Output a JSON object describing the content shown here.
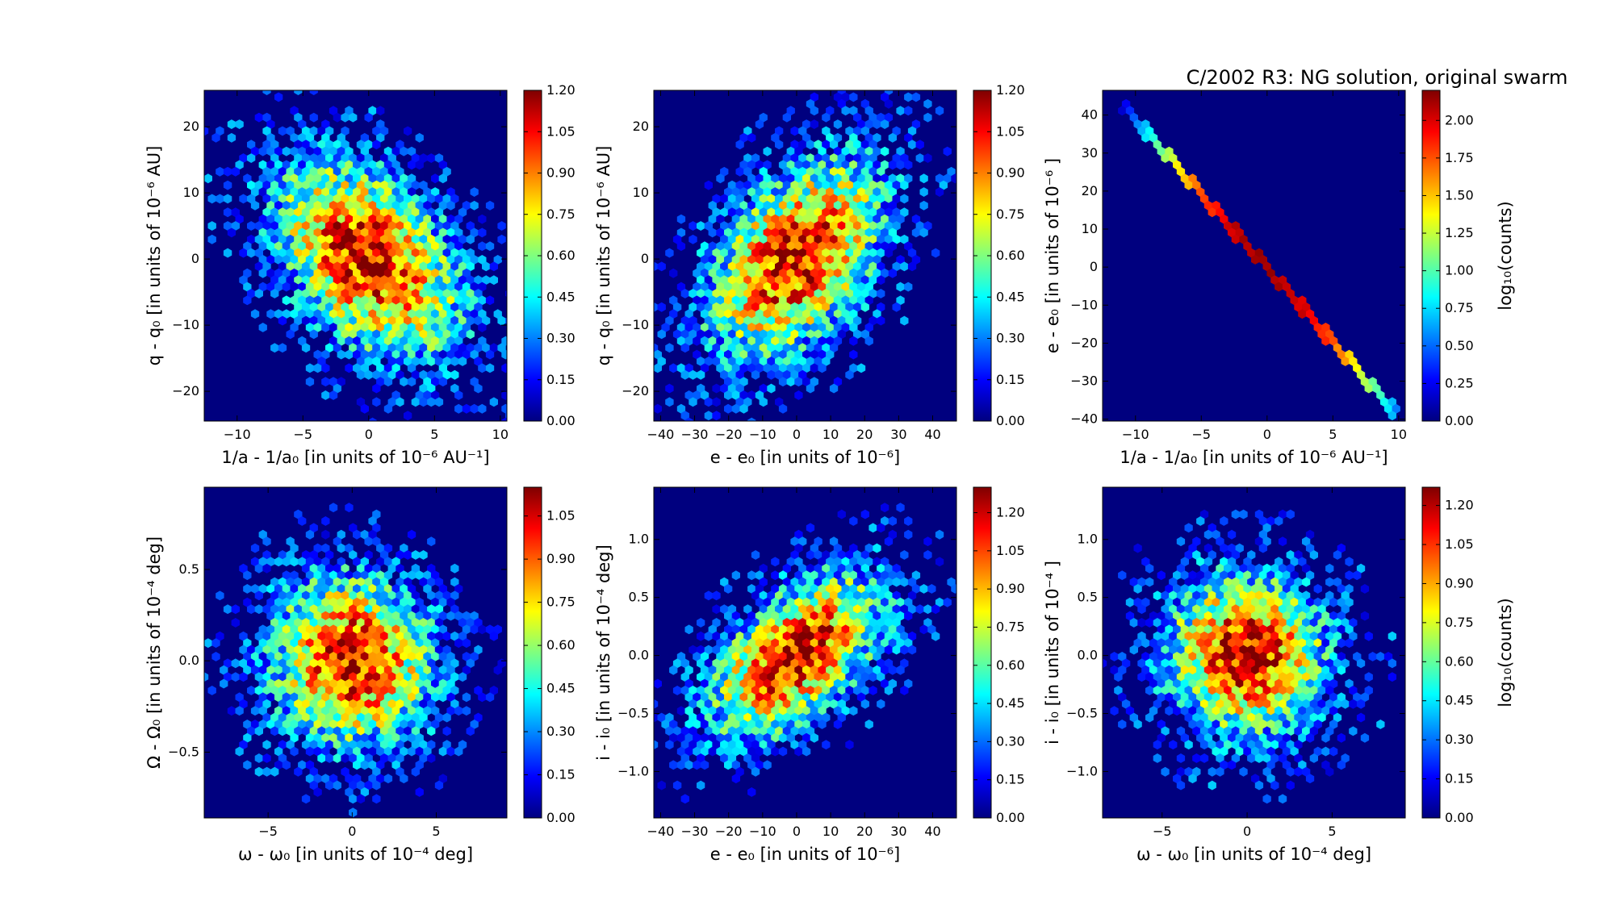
{
  "figure": {
    "title": "C/2002 R3: NG solution, original swarm"
  },
  "colormap": {
    "name": "jet",
    "stops": [
      "#00007f",
      "#0000ff",
      "#007fff",
      "#00ffff",
      "#7fff7f",
      "#ffff00",
      "#ff7f00",
      "#ff0000",
      "#7f0000"
    ],
    "background": "#00007f"
  },
  "chart_data": [
    {
      "type": "heatmap",
      "kind": "ellipse",
      "seed": 11,
      "xlabel": "1/a - 1/a₀ [in units of 10⁻⁶ AU⁻¹]",
      "ylabel": "q - q₀ [in units of 10⁻⁶ AU]",
      "xlim": [
        -12.5,
        10.5
      ],
      "ylim": [
        -24.5,
        25.5
      ],
      "xticks": [
        -10,
        -5,
        0,
        5,
        10
      ],
      "xticklabels": [
        "−10",
        "−5",
        "0",
        "5",
        "10"
      ],
      "yticks": [
        -20,
        -10,
        0,
        10,
        20
      ],
      "yticklabels": [
        "−20",
        "−10",
        "0",
        "10",
        "20"
      ],
      "center": [
        0,
        0
      ],
      "sigma_x": 4.3,
      "sigma_y": 9.0,
      "correlation": -0.42,
      "colorbar": {
        "max": 1.2,
        "ticks": [
          "0.00",
          "0.15",
          "0.30",
          "0.45",
          "0.60",
          "0.75",
          "0.90",
          "1.05",
          "1.20"
        ],
        "label": ""
      }
    },
    {
      "type": "heatmap",
      "kind": "ellipse",
      "seed": 23,
      "xlabel": "e - e₀ [in units of 10⁻⁶]",
      "ylabel": "q - q₀ [in units of 10⁻⁶ AU]",
      "xlim": [
        -42,
        47
      ],
      "ylim": [
        -24.5,
        25.5
      ],
      "xticks": [
        -40,
        -30,
        -20,
        -10,
        0,
        10,
        20,
        30,
        40
      ],
      "xticklabels": [
        "−40",
        "−30",
        "−20",
        "−10",
        "0",
        "10",
        "20",
        "30",
        "40"
      ],
      "yticks": [
        -20,
        -10,
        0,
        10,
        20
      ],
      "yticklabels": [
        "−20",
        "−10",
        "0",
        "10",
        "20"
      ],
      "center": [
        0,
        0
      ],
      "sigma_x": 15.5,
      "sigma_y": 9.0,
      "correlation": 0.45,
      "colorbar": {
        "max": 1.2,
        "ticks": [
          "0.00",
          "0.15",
          "0.30",
          "0.45",
          "0.60",
          "0.75",
          "0.90",
          "1.05",
          "1.20"
        ],
        "label": ""
      }
    },
    {
      "type": "heatmap",
      "kind": "line",
      "seed": 5,
      "xlabel": "1/a - 1/a₀ [in units of 10⁻⁶ AU⁻¹]",
      "ylabel": "e - e₀ [in units of 10⁻⁶ ]",
      "xlim": [
        -12.5,
        10.5
      ],
      "ylim": [
        -40.5,
        46.5
      ],
      "xticks": [
        -10,
        -5,
        0,
        5,
        10
      ],
      "xticklabels": [
        "−10",
        "−5",
        "0",
        "5",
        "10"
      ],
      "yticks": [
        -40,
        -30,
        -20,
        -10,
        0,
        10,
        20,
        30,
        40
      ],
      "yticklabels": [
        "−40",
        "−30",
        "−20",
        "−10",
        "0",
        "10",
        "20",
        "30",
        "40"
      ],
      "line": {
        "x_range": [
          -11.2,
          10.1
        ],
        "slope": -3.9,
        "intercept": -0.2
      },
      "colorbar": {
        "max": 2.2,
        "ticks": [
          "0.00",
          "0.25",
          "0.50",
          "0.75",
          "1.00",
          "1.25",
          "1.50",
          "1.75",
          "2.00"
        ],
        "label": "log₁₀(counts)"
      }
    },
    {
      "type": "heatmap",
      "kind": "ellipse",
      "seed": 37,
      "xlabel": "ω - ω₀ [in units of 10⁻⁴ deg]",
      "ylabel": "Ω - Ω₀ [in units of 10⁻⁴ deg]",
      "xlim": [
        -8.8,
        9.2
      ],
      "ylim": [
        -0.86,
        0.95
      ],
      "xticks": [
        -5,
        0,
        5
      ],
      "xticklabels": [
        "−5",
        "0",
        "5"
      ],
      "yticks": [
        -0.5,
        0,
        0.5
      ],
      "yticklabels": [
        "−0.5",
        "0.0",
        "0.5"
      ],
      "center": [
        0,
        0
      ],
      "sigma_x": 2.9,
      "sigma_y": 0.28,
      "correlation": -0.05,
      "colorbar": {
        "max": 1.15,
        "ticks": [
          "0.00",
          "0.15",
          "0.30",
          "0.45",
          "0.60",
          "0.75",
          "0.90",
          "1.05"
        ],
        "label": ""
      }
    },
    {
      "type": "heatmap",
      "kind": "ellipse",
      "seed": 41,
      "xlabel": "e - e₀ [in units of 10⁻⁶]",
      "ylabel": "i - i₀ [in units of 10⁻⁴ deg]",
      "xlim": [
        -42,
        47
      ],
      "ylim": [
        -1.4,
        1.45
      ],
      "xticks": [
        -40,
        -30,
        -20,
        -10,
        0,
        10,
        20,
        30,
        40
      ],
      "xticklabels": [
        "−40",
        "−30",
        "−20",
        "−10",
        "0",
        "10",
        "20",
        "30",
        "40"
      ],
      "yticks": [
        -1.0,
        -0.5,
        0,
        0.5,
        1.0
      ],
      "yticklabels": [
        "−1.0",
        "−0.5",
        "0.0",
        "0.5",
        "1.0"
      ],
      "center": [
        0,
        0
      ],
      "sigma_x": 15.5,
      "sigma_y": 0.42,
      "correlation": 0.55,
      "colorbar": {
        "max": 1.3,
        "ticks": [
          "0.00",
          "0.15",
          "0.30",
          "0.45",
          "0.60",
          "0.75",
          "0.90",
          "1.05",
          "1.20"
        ],
        "label": ""
      }
    },
    {
      "type": "heatmap",
      "kind": "ellipse",
      "seed": 53,
      "xlabel": "ω - ω₀ [in units of 10⁻⁴ deg]",
      "ylabel": "i - i₀ [in units of 10⁻⁴ ]",
      "xlim": [
        -8.5,
        9.3
      ],
      "ylim": [
        -1.4,
        1.45
      ],
      "xticks": [
        -5,
        0,
        5
      ],
      "xticklabels": [
        "−5",
        "0",
        "5"
      ],
      "yticks": [
        -1.0,
        -0.5,
        0,
        0.5,
        1.0
      ],
      "yticklabels": [
        "−1.0",
        "−0.5",
        "0.0",
        "0.5",
        "1.0"
      ],
      "center": [
        0,
        0
      ],
      "sigma_x": 2.9,
      "sigma_y": 0.42,
      "correlation": -0.05,
      "colorbar": {
        "max": 1.27,
        "ticks": [
          "0.00",
          "0.15",
          "0.30",
          "0.45",
          "0.60",
          "0.75",
          "0.90",
          "1.05",
          "1.20"
        ],
        "label": "log₁₀(counts)"
      }
    }
  ]
}
